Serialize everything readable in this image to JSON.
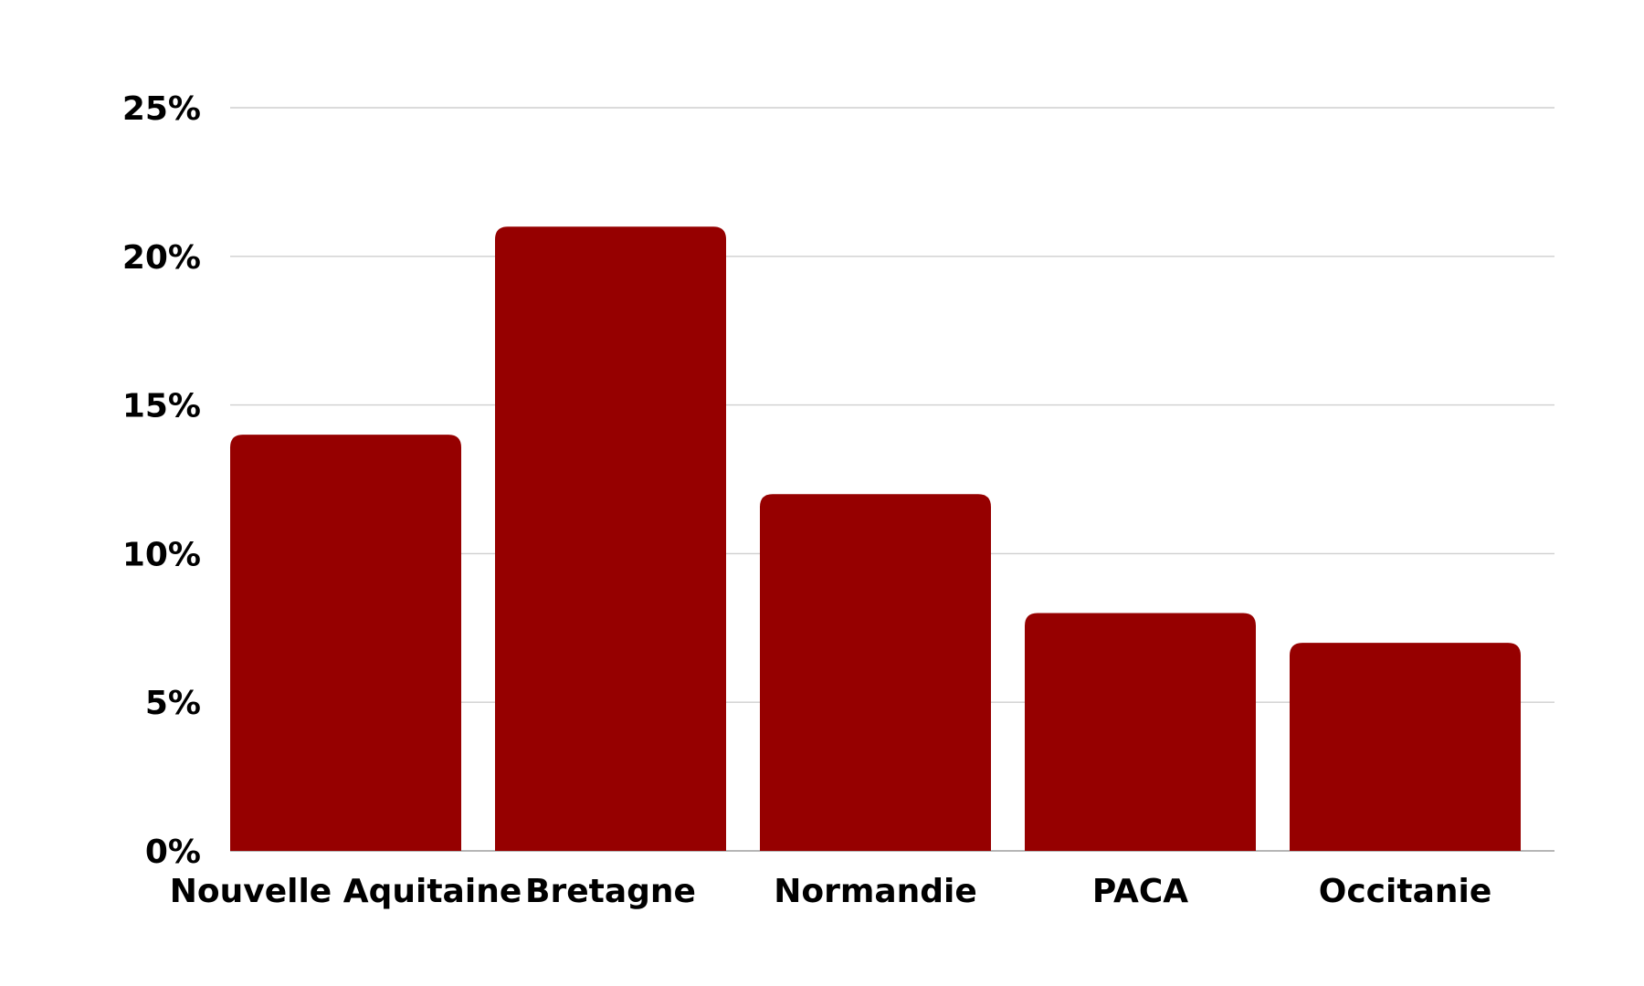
{
  "colors": {
    "bar": "#960000",
    "grid": "#cfcfcf",
    "text": "#000000"
  },
  "chart_data": {
    "type": "bar",
    "title": "",
    "xlabel": "",
    "ylabel": "",
    "categories": [
      "Nouvelle Aquitaine",
      "Bretagne",
      "Normandie",
      "PACA",
      "Occitanie"
    ],
    "values": [
      14,
      21,
      12,
      8,
      7
    ],
    "unit": "%",
    "ylim": [
      0,
      25
    ],
    "yticks": [
      0,
      5,
      10,
      15,
      20,
      25
    ],
    "ytick_labels": [
      "0%",
      "5%",
      "10%",
      "15%",
      "20%",
      "25%"
    ],
    "grid": true,
    "legend": "none"
  }
}
